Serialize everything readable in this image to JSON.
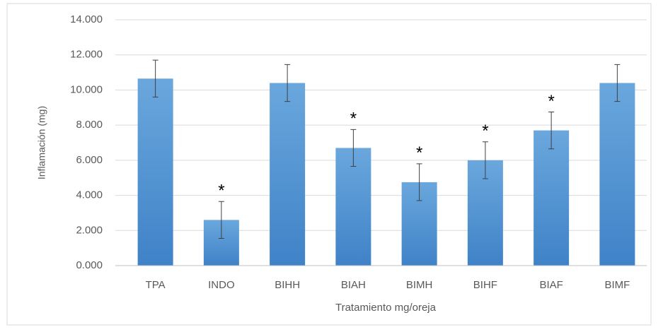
{
  "chart_data": {
    "type": "bar",
    "categories": [
      "TPA",
      "INDO",
      "BIHH",
      "BIAH",
      "BIMH",
      "BIHF",
      "BIAF",
      "BIMF"
    ],
    "values": [
      10.65,
      2.6,
      10.4,
      6.7,
      4.75,
      6.0,
      7.7,
      10.4
    ],
    "errors": [
      1.05,
      1.05,
      1.05,
      1.05,
      1.05,
      1.05,
      1.05,
      1.05
    ],
    "markers": [
      null,
      "*",
      null,
      "*",
      "*",
      "*",
      "*",
      null
    ],
    "color": "#5b9bd5",
    "ylim": [
      0,
      14
    ],
    "yticks": [
      {
        "value": 0,
        "label": "0.000"
      },
      {
        "value": 2,
        "label": "2.000"
      },
      {
        "value": 4,
        "label": "4.000"
      },
      {
        "value": 6,
        "label": "6.000"
      },
      {
        "value": 8,
        "label": "8.000"
      },
      {
        "value": 10,
        "label": "10.000"
      },
      {
        "value": 12,
        "label": "12.000"
      },
      {
        "value": 14,
        "label": "14.000"
      }
    ],
    "grid": true,
    "xlabel": "Tratamiento mg/oreja",
    "ylabel": "Inflamación (mg)"
  }
}
